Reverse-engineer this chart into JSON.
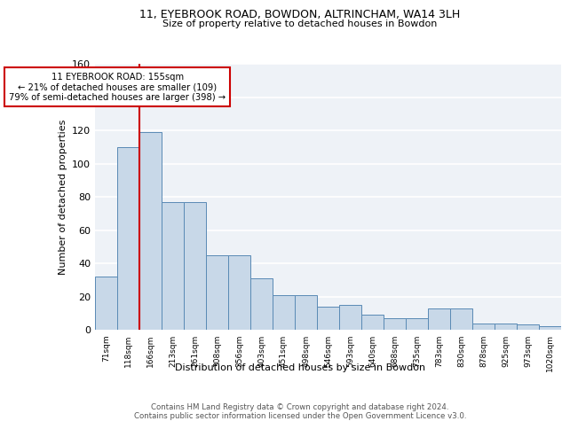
{
  "title1": "11, EYEBROOK ROAD, BOWDON, ALTRINCHAM, WA14 3LH",
  "title2": "Size of property relative to detached houses in Bowdon",
  "xlabel": "Distribution of detached houses by size in Bowdon",
  "ylabel": "Number of detached properties",
  "categories": [
    "71sqm",
    "118sqm",
    "166sqm",
    "213sqm",
    "261sqm",
    "308sqm",
    "356sqm",
    "403sqm",
    "451sqm",
    "498sqm",
    "546sqm",
    "593sqm",
    "640sqm",
    "688sqm",
    "735sqm",
    "783sqm",
    "830sqm",
    "878sqm",
    "925sqm",
    "973sqm",
    "1020sqm"
  ],
  "values": [
    32,
    110,
    119,
    77,
    77,
    45,
    45,
    31,
    21,
    21,
    14,
    15,
    9,
    7,
    7,
    13,
    13,
    4,
    4,
    3,
    2
  ],
  "bar_color": "#c8d8e8",
  "bar_edge_color": "#5a8ab5",
  "red_line_color": "#cc0000",
  "annotation_text": "11 EYEBROOK ROAD: 155sqm\n← 21% of detached houses are smaller (109)\n79% of semi-detached houses are larger (398) →",
  "annotation_box_color": "white",
  "annotation_box_edge": "#cc0000",
  "footer": "Contains HM Land Registry data © Crown copyright and database right 2024.\nContains public sector information licensed under the Open Government Licence v3.0.",
  "ylim": [
    0,
    160
  ],
  "yticks": [
    0,
    20,
    40,
    60,
    80,
    100,
    120,
    140,
    160
  ],
  "background_color": "#eef2f7"
}
